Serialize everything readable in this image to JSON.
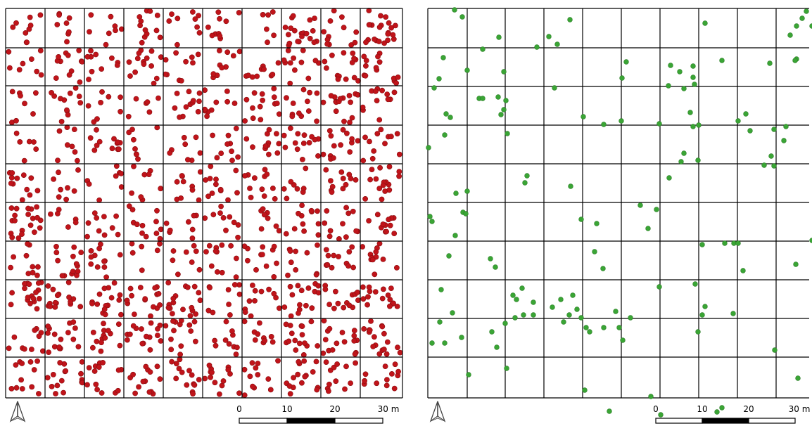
{
  "maps": [
    {
      "id": "left",
      "point_color": "#c0141a",
      "point_stroke": "#8a0d10",
      "north_arrow": "north-arrow-icon",
      "scale_bar": {
        "ticks": [
          "0",
          "10",
          "20",
          "30 m"
        ]
      }
    },
    {
      "id": "right",
      "point_color": "#3aa535",
      "point_stroke": "#2a7d26",
      "north_arrow": "north-arrow-icon",
      "scale_bar": {
        "ticks": [
          "0",
          "10",
          "20",
          "30 m"
        ]
      },
      "points": [
        [
          646,
          14
        ],
        [
          657,
          24
        ],
        [
          810,
          28
        ],
        [
          1002,
          33
        ],
        [
          1146,
          16
        ],
        [
          1140,
          26
        ],
        [
          1132,
          37
        ],
        [
          1123,
          50
        ],
        [
          1154,
          37
        ],
        [
          780,
          52
        ],
        [
          792,
          63
        ],
        [
          763,
          67
        ],
        [
          709,
          53
        ],
        [
          686,
          70
        ],
        [
          630,
          82
        ],
        [
          1026,
          86
        ],
        [
          1094,
          90
        ],
        [
          1132,
          84
        ],
        [
          1130,
          86
        ],
        [
          890,
          88
        ],
        [
          664,
          100
        ],
        [
          716,
          102
        ],
        [
          624,
          112
        ],
        [
          884,
          111
        ],
        [
          953,
          93
        ],
        [
          966,
          102
        ],
        [
          985,
          94
        ],
        [
          985,
          110
        ],
        [
          950,
          122
        ],
        [
          972,
          126
        ],
        [
          987,
          120
        ],
        [
          617,
          125
        ],
        [
          788,
          125
        ],
        [
          681,
          140
        ],
        [
          686,
          140
        ],
        [
          708,
          138
        ],
        [
          719,
          143
        ],
        [
          716,
          156
        ],
        [
          712,
          163
        ],
        [
          634,
          162
        ],
        [
          640,
          167
        ],
        [
          829,
          166
        ],
        [
          858,
          177
        ],
        [
          883,
          172
        ],
        [
          937,
          176
        ],
        [
          981,
          160
        ],
        [
          985,
          180
        ],
        [
          993,
          178
        ],
        [
          1060,
          162
        ],
        [
          1049,
          172
        ],
        [
          1066,
          186
        ],
        [
          1100,
          184
        ],
        [
          1117,
          180
        ],
        [
          1114,
          200
        ],
        [
          632,
          192
        ],
        [
          721,
          190
        ],
        [
          609,
          210
        ],
        [
          972,
          218
        ],
        [
          992,
          228
        ],
        [
          968,
          230
        ],
        [
          1096,
          222
        ],
        [
          1086,
          235
        ],
        [
          1100,
          236
        ],
        [
          951,
          253
        ],
        [
          749,
          250
        ],
        [
          746,
          260
        ],
        [
          811,
          265
        ],
        [
          648,
          275
        ],
        [
          664,
          272
        ],
        [
          910,
          292
        ],
        [
          933,
          298
        ],
        [
          658,
          302
        ],
        [
          662,
          304
        ],
        [
          611,
          308
        ],
        [
          614,
          315
        ],
        [
          826,
          312
        ],
        [
          848,
          318
        ],
        [
          921,
          325
        ],
        [
          647,
          335
        ],
        [
          998,
          348
        ],
        [
          1030,
          346
        ],
        [
          1043,
          346
        ],
        [
          1049,
          346
        ],
        [
          1154,
          342
        ],
        [
          845,
          358
        ],
        [
          638,
          364
        ],
        [
          697,
          368
        ],
        [
          704,
          380
        ],
        [
          857,
          382
        ],
        [
          1131,
          376
        ],
        [
          1056,
          385
        ],
        [
          988,
          404
        ],
        [
          937,
          408
        ],
        [
          627,
          412
        ],
        [
          742,
          410
        ],
        [
          729,
          420
        ],
        [
          734,
          426
        ],
        [
          814,
          420
        ],
        [
          797,
          426
        ],
        [
          785,
          437
        ],
        [
          820,
          440
        ],
        [
          875,
          443
        ],
        [
          1002,
          436
        ],
        [
          998,
          448
        ],
        [
          1042,
          446
        ],
        [
          643,
          445
        ],
        [
          758,
          430
        ],
        [
          758,
          448
        ],
        [
          744,
          448
        ],
        [
          732,
          452
        ],
        [
          718,
          460
        ],
        [
          809,
          448
        ],
        [
          801,
          458
        ],
        [
          896,
          452
        ],
        [
          826,
          452
        ],
        [
          833,
          466
        ],
        [
          838,
          472
        ],
        [
          858,
          466
        ],
        [
          880,
          466
        ],
        [
          885,
          484
        ],
        [
          992,
          472
        ],
        [
          625,
          458
        ],
        [
          699,
          472
        ],
        [
          656,
          480
        ],
        [
          614,
          488
        ],
        [
          632,
          488
        ],
        [
          706,
          494
        ],
        [
          1101,
          498
        ],
        [
          720,
          524
        ],
        [
          666,
          533
        ],
        [
          831,
          555
        ],
        [
          925,
          564
        ],
        [
          1134,
          538
        ],
        [
          1026,
          580
        ],
        [
          1019,
          586
        ],
        [
          866,
          585
        ],
        [
          939,
          590
        ]
      ]
    }
  ]
}
